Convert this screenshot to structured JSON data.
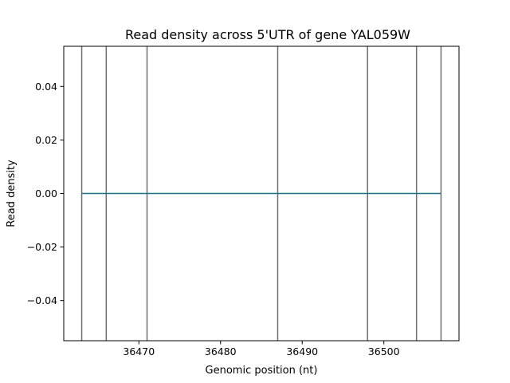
{
  "chart_data": {
    "type": "line",
    "title": "Read density across 5'UTR of gene YAL059W",
    "xlabel": "Genomic position (nt)",
    "ylabel": "Read density",
    "xlim": [
      36460.8,
      36509.2
    ],
    "ylim": [
      -0.055,
      0.055
    ],
    "x_ticks": [
      36470,
      36480,
      36490,
      36500
    ],
    "x_tick_labels": [
      "36470",
      "36480",
      "36490",
      "36500"
    ],
    "y_ticks": [
      -0.04,
      -0.02,
      0.0,
      0.02,
      0.04
    ],
    "y_tick_labels": [
      "−0.04",
      "−0.02",
      "0.00",
      "0.02",
      "0.04"
    ],
    "grid": false,
    "legend": "none",
    "series": [
      {
        "x": [
          36463,
          36507
        ],
        "y": [
          0,
          0
        ],
        "color": "#1f6f8b"
      }
    ],
    "vlines": {
      "x": [
        36463,
        36466,
        36471,
        36487,
        36498,
        36504,
        36507
      ],
      "color": "#6e6e6e"
    }
  }
}
